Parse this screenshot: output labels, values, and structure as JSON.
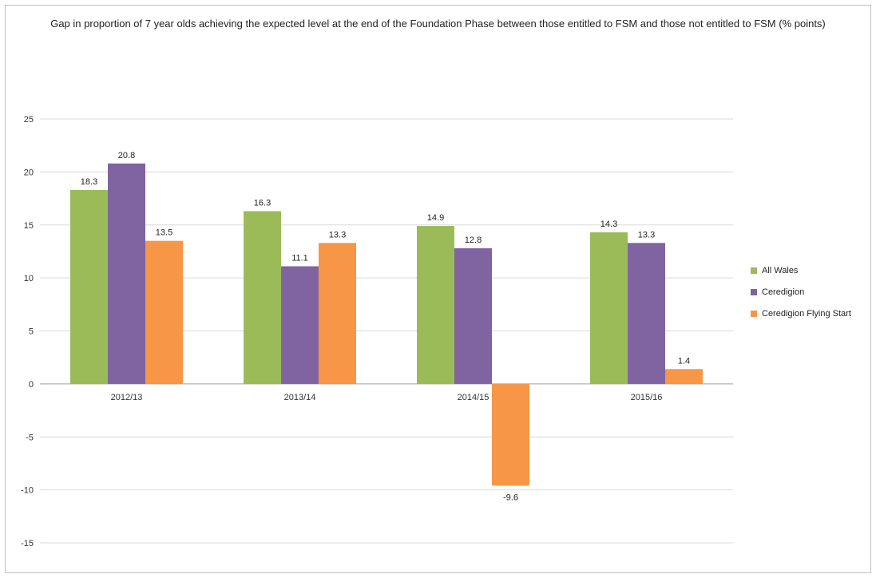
{
  "chart_data": {
    "type": "bar",
    "title": "Gap in proportion of 7 year olds achieving the expected level at the end of the Foundation Phase between those entitled to FSM and those not entitled to FSM (% points)",
    "categories": [
      "2012/13",
      "2013/14",
      "2014/15",
      "2015/16"
    ],
    "series": [
      {
        "name": "All Wales",
        "color": "#9BBB59",
        "values": [
          18.3,
          16.3,
          14.9,
          14.3
        ]
      },
      {
        "name": "Ceredigion",
        "color": "#8064A2",
        "values": [
          20.8,
          11.1,
          12.8,
          13.3
        ]
      },
      {
        "name": "Ceredigion Flying Start",
        "color": "#F79646",
        "values": [
          13.5,
          13.3,
          -9.6,
          1.4
        ]
      }
    ],
    "ylim": [
      -15,
      25
    ],
    "yticks": [
      25,
      20,
      15,
      10,
      5,
      0,
      -5,
      -10,
      -15
    ],
    "grid": true,
    "legend_position": "right"
  }
}
